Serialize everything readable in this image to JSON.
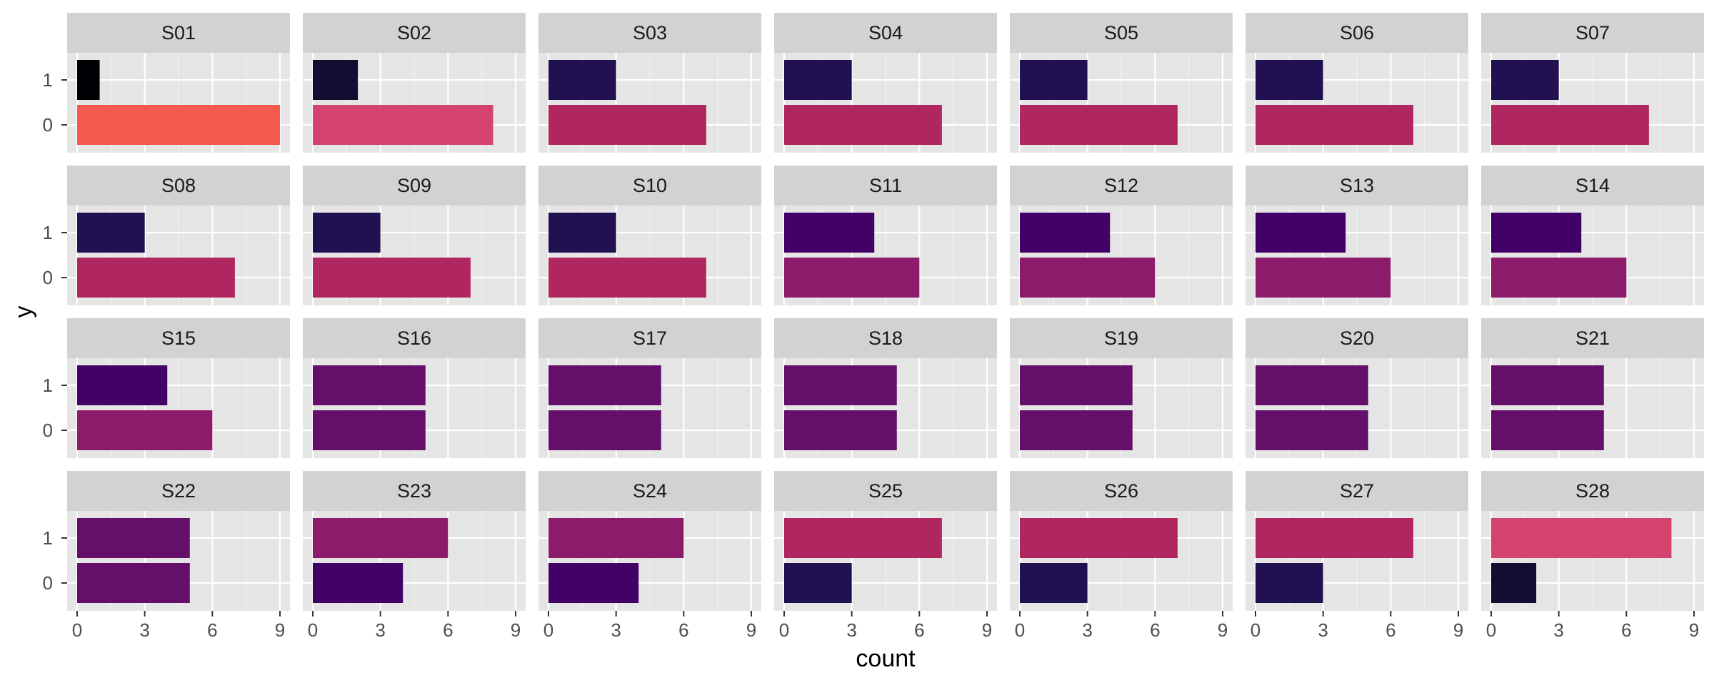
{
  "chart_data": {
    "type": "bar",
    "orientation": "horizontal",
    "facet_layout": "4 rows x 7 columns",
    "xlabel": "count",
    "ylabel": "y",
    "xlim": [
      0,
      9
    ],
    "x_ticks": [
      "0",
      "3",
      "6",
      "9"
    ],
    "categories": [
      "0",
      "1"
    ],
    "grid": true,
    "color_scale": "magma",
    "panel_background": "#e5e5e5",
    "strip_background": "#d2d2d2",
    "panels": [
      {
        "name": "S01",
        "values": [
          9,
          1
        ],
        "colors": [
          "#f4594e",
          "#000004"
        ]
      },
      {
        "name": "S02",
        "values": [
          8,
          2
        ],
        "colors": [
          "#d3436e",
          "#120d31"
        ]
      },
      {
        "name": "S03",
        "values": [
          7,
          3
        ],
        "colors": [
          "#b0265f",
          "#221150"
        ]
      },
      {
        "name": "S04",
        "values": [
          7,
          3
        ],
        "colors": [
          "#b0265f",
          "#221150"
        ]
      },
      {
        "name": "S05",
        "values": [
          7,
          3
        ],
        "colors": [
          "#b0265f",
          "#221150"
        ]
      },
      {
        "name": "S06",
        "values": [
          7,
          3
        ],
        "colors": [
          "#b0265f",
          "#221150"
        ]
      },
      {
        "name": "S07",
        "values": [
          7,
          3
        ],
        "colors": [
          "#b0265f",
          "#221150"
        ]
      },
      {
        "name": "S08",
        "values": [
          7,
          3
        ],
        "colors": [
          "#b0265f",
          "#221150"
        ]
      },
      {
        "name": "S09",
        "values": [
          7,
          3
        ],
        "colors": [
          "#b0265f",
          "#221150"
        ]
      },
      {
        "name": "S10",
        "values": [
          7,
          3
        ],
        "colors": [
          "#b0265f",
          "#221150"
        ]
      },
      {
        "name": "S11",
        "values": [
          6,
          4
        ],
        "colors": [
          "#8c1c6b",
          "#420166"
        ]
      },
      {
        "name": "S12",
        "values": [
          6,
          4
        ],
        "colors": [
          "#8c1c6b",
          "#420166"
        ]
      },
      {
        "name": "S13",
        "values": [
          6,
          4
        ],
        "colors": [
          "#8c1c6b",
          "#420166"
        ]
      },
      {
        "name": "S14",
        "values": [
          6,
          4
        ],
        "colors": [
          "#8c1c6b",
          "#420166"
        ]
      },
      {
        "name": "S15",
        "values": [
          6,
          4
        ],
        "colors": [
          "#8c1c6b",
          "#420166"
        ]
      },
      {
        "name": "S16",
        "values": [
          5,
          5
        ],
        "colors": [
          "#640f69",
          "#640f69"
        ]
      },
      {
        "name": "S17",
        "values": [
          5,
          5
        ],
        "colors": [
          "#640f69",
          "#640f69"
        ]
      },
      {
        "name": "S18",
        "values": [
          5,
          5
        ],
        "colors": [
          "#640f69",
          "#640f69"
        ]
      },
      {
        "name": "S19",
        "values": [
          5,
          5
        ],
        "colors": [
          "#640f69",
          "#640f69"
        ]
      },
      {
        "name": "S20",
        "values": [
          5,
          5
        ],
        "colors": [
          "#640f69",
          "#640f69"
        ]
      },
      {
        "name": "S21",
        "values": [
          5,
          5
        ],
        "colors": [
          "#640f69",
          "#640f69"
        ]
      },
      {
        "name": "S22",
        "values": [
          5,
          5
        ],
        "colors": [
          "#640f69",
          "#640f69"
        ]
      },
      {
        "name": "S23",
        "values": [
          4,
          6
        ],
        "colors": [
          "#420166",
          "#8c1c6b"
        ]
      },
      {
        "name": "S24",
        "values": [
          4,
          6
        ],
        "colors": [
          "#420166",
          "#8c1c6b"
        ]
      },
      {
        "name": "S25",
        "values": [
          3,
          7
        ],
        "colors": [
          "#221150",
          "#b0265f"
        ]
      },
      {
        "name": "S26",
        "values": [
          3,
          7
        ],
        "colors": [
          "#221150",
          "#b0265f"
        ]
      },
      {
        "name": "S27",
        "values": [
          3,
          7
        ],
        "colors": [
          "#221150",
          "#b0265f"
        ]
      },
      {
        "name": "S28",
        "values": [
          2,
          8
        ],
        "colors": [
          "#120d31",
          "#d3436e"
        ]
      }
    ]
  }
}
